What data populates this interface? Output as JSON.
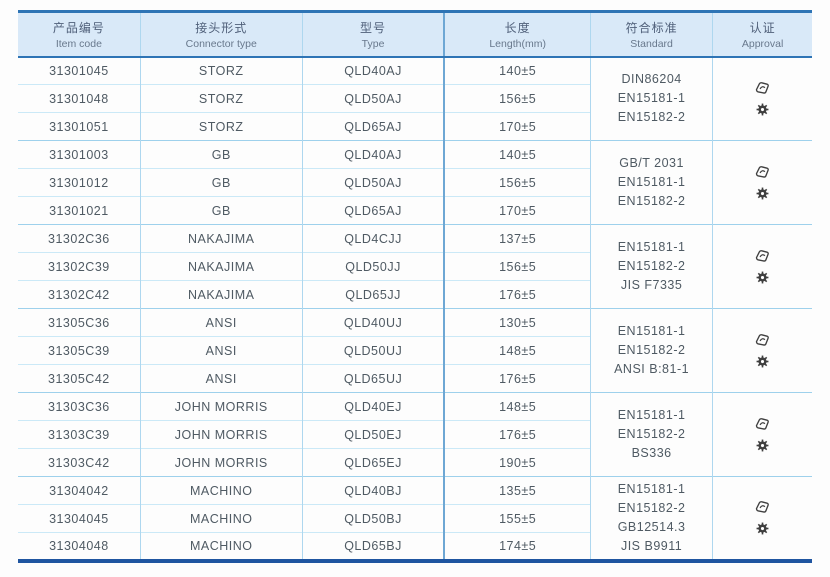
{
  "table": {
    "columns": [
      {
        "zh": "产品编号",
        "en": "Item code"
      },
      {
        "zh": "接头形式",
        "en": "Connector type"
      },
      {
        "zh": "型号",
        "en": "Type"
      },
      {
        "zh": "长度",
        "en": "Length(mm)"
      },
      {
        "zh": "符合标准",
        "en": "Standard"
      },
      {
        "zh": "认证",
        "en": "Approval"
      }
    ],
    "groups": [
      {
        "rows": [
          {
            "item_code": "31301045",
            "connector_type": "STORZ",
            "type": "QLD40AJ",
            "length": "140±5"
          },
          {
            "item_code": "31301048",
            "connector_type": "STORZ",
            "type": "QLD50AJ",
            "length": "156±5"
          },
          {
            "item_code": "31301051",
            "connector_type": "STORZ",
            "type": "QLD65AJ",
            "length": "170±5"
          }
        ],
        "standards": [
          "DIN86204",
          "EN15181-1",
          "EN15182-2"
        ],
        "approval_icons": [
          "stamp-icon",
          "wheelmark-icon"
        ]
      },
      {
        "rows": [
          {
            "item_code": "31301003",
            "connector_type": "GB",
            "type": "QLD40AJ",
            "length": "140±5"
          },
          {
            "item_code": "31301012",
            "connector_type": "GB",
            "type": "QLD50AJ",
            "length": "156±5"
          },
          {
            "item_code": "31301021",
            "connector_type": "GB",
            "type": "QLD65AJ",
            "length": "170±5"
          }
        ],
        "standards": [
          "GB/T 2031",
          "EN15181-1",
          "EN15182-2"
        ],
        "approval_icons": [
          "stamp-icon",
          "wheelmark-icon"
        ]
      },
      {
        "rows": [
          {
            "item_code": "31302C36",
            "connector_type": "NAKAJIMA",
            "type": "QLD4CJJ",
            "length": "137±5"
          },
          {
            "item_code": "31302C39",
            "connector_type": "NAKAJIMA",
            "type": "QLD50JJ",
            "length": "156±5"
          },
          {
            "item_code": "31302C42",
            "connector_type": "NAKAJIMA",
            "type": "QLD65JJ",
            "length": "176±5"
          }
        ],
        "standards": [
          "EN15181-1",
          "EN15182-2",
          "JIS F7335"
        ],
        "approval_icons": [
          "stamp-icon",
          "wheelmark-icon"
        ]
      },
      {
        "rows": [
          {
            "item_code": "31305C36",
            "connector_type": "ANSI",
            "type": "QLD40UJ",
            "length": "130±5"
          },
          {
            "item_code": "31305C39",
            "connector_type": "ANSI",
            "type": "QLD50UJ",
            "length": "148±5"
          },
          {
            "item_code": "31305C42",
            "connector_type": "ANSI",
            "type": "QLD65UJ",
            "length": "176±5"
          }
        ],
        "standards": [
          "EN15181-1",
          "EN15182-2",
          "ANSI B:81-1"
        ],
        "approval_icons": [
          "stamp-icon",
          "wheelmark-icon"
        ]
      },
      {
        "rows": [
          {
            "item_code": "31303C36",
            "connector_type": "JOHN MORRIS",
            "type": "QLD40EJ",
            "length": "148±5"
          },
          {
            "item_code": "31303C39",
            "connector_type": "JOHN MORRIS",
            "type": "QLD50EJ",
            "length": "176±5"
          },
          {
            "item_code": "31303C42",
            "connector_type": "JOHN MORRIS",
            "type": "QLD65EJ",
            "length": "190±5"
          }
        ],
        "standards": [
          "EN15181-1",
          "EN15182-2",
          "BS336"
        ],
        "approval_icons": [
          "stamp-icon",
          "wheelmark-icon"
        ]
      },
      {
        "rows": [
          {
            "item_code": "31304042",
            "connector_type": "MACHINO",
            "type": "QLD40BJ",
            "length": "135±5"
          },
          {
            "item_code": "31304045",
            "connector_type": "MACHINO",
            "type": "QLD50BJ",
            "length": "155±5"
          },
          {
            "item_code": "31304048",
            "connector_type": "MACHINO",
            "type": "QLD65BJ",
            "length": "174±5"
          }
        ],
        "standards": [
          "EN15181-1",
          "EN15182-2",
          "GB12514.3",
          "JIS B9911"
        ],
        "approval_icons": [
          "stamp-icon",
          "wheelmark-icon"
        ]
      }
    ]
  },
  "colors": {
    "header_bg": "#d9e9f8",
    "accent_blue": "#2e74b5",
    "bottom_border": "#1f55a0",
    "row_line": "#cbe9f7",
    "group_line": "#9ed1ec",
    "text": "#4f5a63",
    "icon": "#3f3f3f"
  }
}
